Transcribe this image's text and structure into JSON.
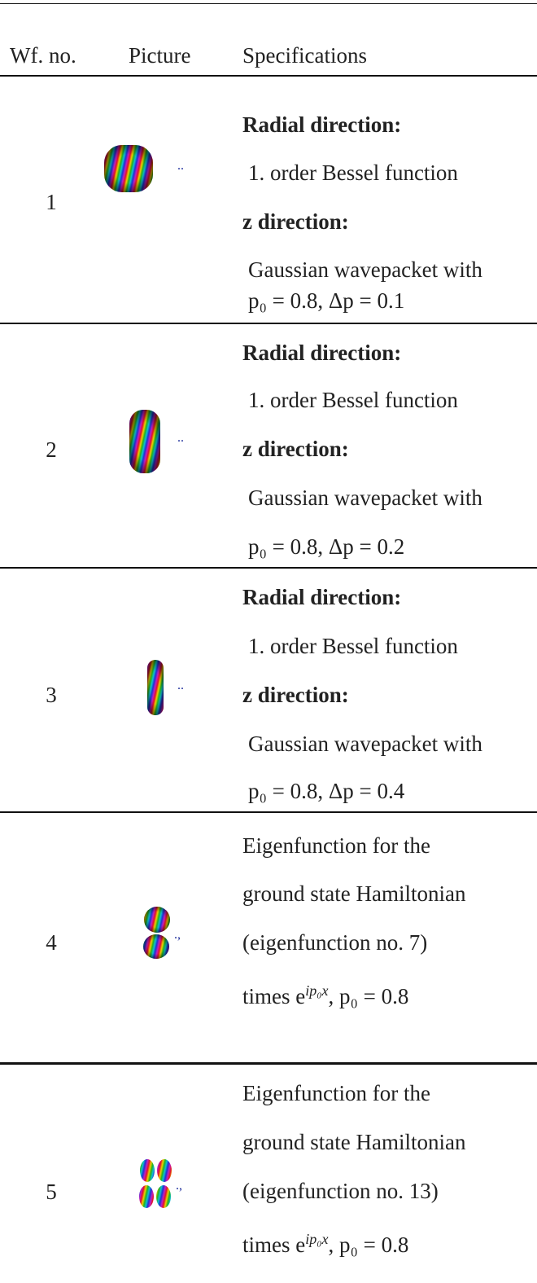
{
  "header": {
    "columns": [
      "Wf. no.",
      "Picture",
      "Specifications"
    ]
  },
  "rows": [
    {
      "no": "1",
      "spec": [
        "Radial direction:",
        "1. order Bessel function",
        "z direction:",
        "Gaussian wavepacket with",
        "p₀ = 0.8, Δp = 0.1"
      ]
    },
    {
      "no": "2",
      "spec": [
        "Radial direction:",
        "1. order Bessel function",
        "z direction:",
        "Gaussian wavepacket with",
        "p₀ = 0.8, Δp = 0.2"
      ]
    },
    {
      "no": "3",
      "spec": [
        "Radial direction:",
        "1. order Bessel function",
        "z direction:",
        "Gaussian wavepacket with",
        "p₀ = 0.8, Δp = 0.4"
      ]
    },
    {
      "no": "4",
      "spec": [
        "Eigenfunction for the",
        "ground state Hamiltonian",
        "(eigenfunction no. 7)"
      ],
      "times": {
        "prefix": "times e",
        "sup": "ip₀x",
        "suffix": ", p₀ = 0.8"
      }
    },
    {
      "no": "5",
      "spec": [
        "Eigenfunction for the",
        "ground state Hamiltonian",
        "(eigenfunction no. 13)"
      ],
      "times": {
        "prefix": "times e",
        "sup": "ip₀x",
        "suffix": ", p₀ = 0.8"
      }
    }
  ]
}
